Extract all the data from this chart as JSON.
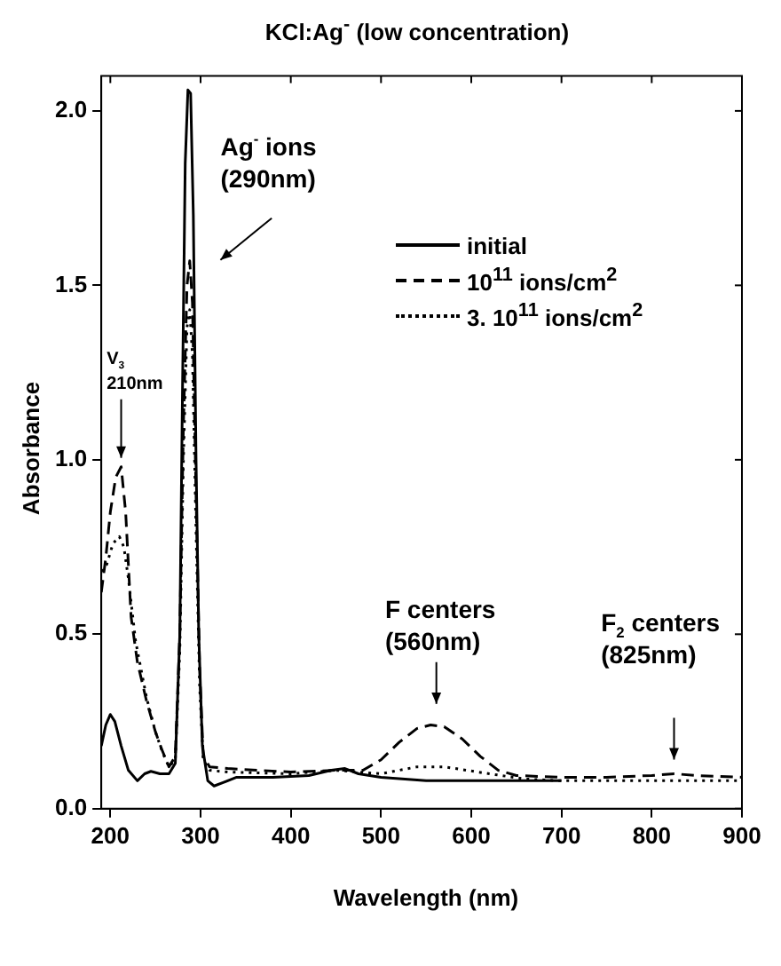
{
  "chart_data": {
    "type": "line",
    "title": "KCl:Ag$^{-}$ (low concentration)",
    "xlabel": "Wavelength (nm)",
    "ylabel": "Absorbance",
    "xlim": [
      190,
      900
    ],
    "xticks": [
      200,
      300,
      400,
      500,
      600,
      700,
      800,
      900
    ],
    "ylim": [
      0,
      2.1
    ],
    "yticks": [
      {
        "value": 0,
        "label": "0.0"
      },
      {
        "value": 0.5,
        "label": "0.5"
      },
      {
        "value": 1,
        "label": "1.0"
      },
      {
        "value": 1.5,
        "label": "1.5"
      },
      {
        "value": 2,
        "label": "2.0"
      }
    ],
    "grid": false,
    "legend": "top right",
    "marker": "none",
    "series": [
      {
        "name": "initial",
        "color": "#000000",
        "line_style": "solid",
        "x": [
          190,
          195,
          200,
          205,
          212,
          220,
          230,
          238,
          245,
          255,
          265,
          272,
          277,
          280,
          283,
          286,
          289,
          292,
          295,
          298,
          302,
          308,
          315,
          325,
          340,
          380,
          420,
          445,
          460,
          475,
          500,
          550,
          600,
          700
        ],
        "values": [
          0.18,
          0.24,
          0.27,
          0.25,
          0.18,
          0.11,
          0.08,
          0.1,
          0.107,
          0.1,
          0.1,
          0.13,
          0.5,
          1.2,
          1.85,
          2.06,
          2.05,
          1.7,
          1.0,
          0.5,
          0.18,
          0.08,
          0.065,
          0.075,
          0.09,
          0.09,
          0.095,
          0.11,
          0.115,
          0.1,
          0.09,
          0.08,
          0.08,
          0.08
        ]
      },
      {
        "name": "10$^{11}$ ions/cm$^{2}$",
        "color": "#000000",
        "line_style": "dashed",
        "x": [
          190,
          195,
          200,
          206,
          212,
          217,
          223,
          230,
          240,
          250,
          257,
          265,
          272,
          277,
          281,
          285,
          288,
          291,
          295,
          299,
          303,
          310,
          330,
          400,
          450,
          480,
          500,
          520,
          540,
          555,
          570,
          590,
          610,
          630,
          650,
          700,
          750,
          800,
          825,
          850,
          900
        ],
        "values": [
          0.62,
          0.72,
          0.85,
          0.95,
          0.98,
          0.85,
          0.55,
          0.42,
          0.31,
          0.22,
          0.17,
          0.12,
          0.15,
          0.5,
          1.1,
          1.5,
          1.57,
          1.45,
          0.9,
          0.4,
          0.15,
          0.12,
          0.115,
          0.105,
          0.11,
          0.11,
          0.14,
          0.19,
          0.23,
          0.24,
          0.235,
          0.2,
          0.15,
          0.11,
          0.095,
          0.09,
          0.09,
          0.095,
          0.1,
          0.095,
          0.09
        ]
      },
      {
        "name": "3. 10$^{11}$ ions/cm$^{2}$",
        "color": "#000000",
        "line_style": "dotted",
        "x": [
          190,
          196,
          203,
          210,
          215,
          220,
          228,
          240,
          250,
          258,
          265,
          272,
          277,
          281,
          285,
          288,
          291,
          295,
          299,
          303,
          310,
          330,
          400,
          450,
          500,
          540,
          570,
          620,
          660,
          700,
          800,
          900
        ],
        "values": [
          0.68,
          0.7,
          0.76,
          0.78,
          0.75,
          0.66,
          0.48,
          0.32,
          0.22,
          0.16,
          0.12,
          0.14,
          0.45,
          1.0,
          1.38,
          1.43,
          1.3,
          0.8,
          0.35,
          0.14,
          0.11,
          0.105,
          0.1,
          0.11,
          0.1,
          0.12,
          0.12,
          0.1,
          0.085,
          0.08,
          0.08,
          0.08
        ]
      }
    ],
    "annotations": [
      "Ag$^{-}$ ions\n(290nm)",
      {
        "text": "V$_{3}$\n210nm",
        "x": 212,
        "y": 0.98
      },
      "F centers\n(560nm)",
      "F$_{2}$ centers\n(825nm)"
    ]
  }
}
